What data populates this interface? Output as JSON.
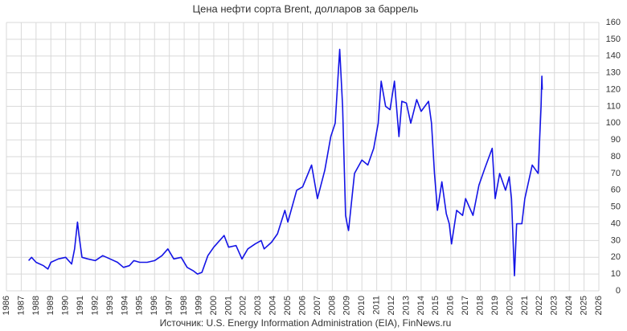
{
  "chart_data": {
    "type": "line",
    "title": "Цена нефти сорта Brent, долларов за баррель",
    "source": "Источник: U.S. Energy Information Administration (EIA), FinNews.ru",
    "xlim": [
      1986,
      2026
    ],
    "xticks": [
      1986,
      1987,
      1988,
      1989,
      1990,
      1991,
      1992,
      1993,
      1994,
      1995,
      1996,
      1997,
      1998,
      1999,
      2000,
      2001,
      2002,
      2003,
      2004,
      2005,
      2006,
      2007,
      2008,
      2009,
      2010,
      2011,
      2012,
      2013,
      2014,
      2015,
      2016,
      2017,
      2018,
      2019,
      2020,
      2021,
      2022,
      2023,
      2024,
      2025,
      2026
    ],
    "ylim": [
      0,
      160
    ],
    "yticks": [
      0,
      10,
      20,
      30,
      40,
      50,
      60,
      70,
      80,
      90,
      100,
      110,
      120,
      130,
      140,
      150,
      160
    ],
    "grid": true,
    "y_axis_side": "right",
    "series": [
      {
        "name": "Brent",
        "color": "#1414e6",
        "x": [
          1987.5,
          1987.7,
          1988,
          1988.5,
          1988.8,
          1989,
          1989.5,
          1990,
          1990.4,
          1990.6,
          1990.8,
          1990.9,
          1991.1,
          1991.5,
          1992,
          1992.5,
          1993,
          1993.5,
          1993.9,
          1994.3,
          1994.6,
          1995,
          1995.5,
          1996,
          1996.5,
          1996.9,
          1997.3,
          1997.8,
          1998.2,
          1998.6,
          1998.9,
          1999.2,
          1999.6,
          2000,
          2000.7,
          2001,
          2001.5,
          2001.9,
          2002.3,
          2002.8,
          2003.2,
          2003.4,
          2003.9,
          2004.3,
          2004.8,
          2005,
          2005.6,
          2006,
          2006.6,
          2007,
          2007.5,
          2007.9,
          2008.2,
          2008.5,
          2008.7,
          2008.9,
          2009,
          2009.1,
          2009.5,
          2010,
          2010.4,
          2010.8,
          2011.1,
          2011.3,
          2011.6,
          2011.9,
          2012.2,
          2012.5,
          2012.7,
          2013,
          2013.3,
          2013.7,
          2014,
          2014.5,
          2014.7,
          2014.9,
          2015.1,
          2015.4,
          2015.7,
          2015.9,
          2016.05,
          2016.4,
          2016.8,
          2017,
          2017.5,
          2017.9,
          2018.3,
          2018.8,
          2019,
          2019.3,
          2019.7,
          2019.95,
          2020.1,
          2020.25,
          2020.3,
          2020.45,
          2020.8,
          2021,
          2021.5,
          2021.9,
          2022,
          2022.1,
          2022.15,
          2022.18
        ],
        "values": [
          18,
          20,
          17,
          15,
          13,
          17,
          19,
          20,
          16,
          25,
          41,
          33,
          20,
          19,
          18,
          21,
          19,
          17,
          14,
          15,
          18,
          17,
          17,
          18,
          21,
          25,
          19,
          20,
          14,
          12,
          10,
          11,
          21,
          26,
          33,
          26,
          27,
          19,
          25,
          28,
          30,
          25,
          29,
          34,
          48,
          41,
          60,
          62,
          75,
          55,
          72,
          92,
          100,
          144,
          110,
          45,
          40,
          36,
          70,
          78,
          75,
          85,
          100,
          125,
          110,
          108,
          125,
          92,
          113,
          112,
          100,
          114,
          107,
          113,
          100,
          70,
          48,
          65,
          46,
          40,
          28,
          48,
          45,
          55,
          45,
          63,
          73,
          85,
          55,
          70,
          60,
          68,
          55,
          20,
          9,
          40,
          40,
          55,
          75,
          70,
          90,
          110,
          128,
          120
        ]
      }
    ]
  }
}
